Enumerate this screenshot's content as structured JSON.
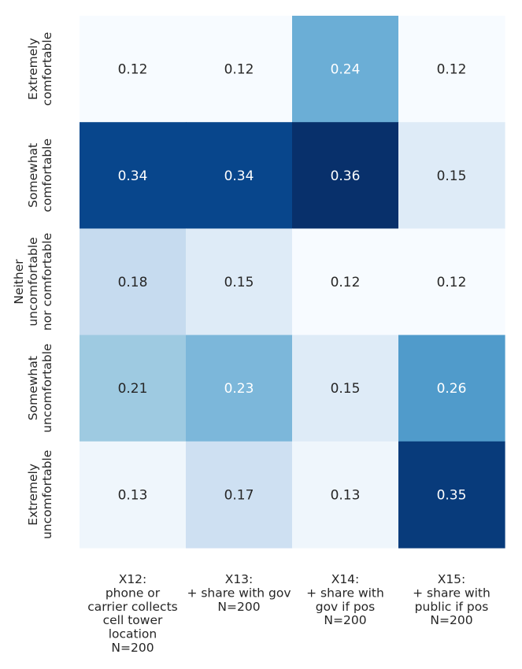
{
  "chart_data": {
    "type": "heatmap",
    "title": "",
    "xlabel": "",
    "ylabel": "",
    "colormap": "Blues",
    "vmin": 0.12,
    "vmax": 0.36,
    "grid": false,
    "legend": "none",
    "rows": [
      [
        "Extremely",
        "comfortable"
      ],
      [
        "Somewhat",
        "comfortable"
      ],
      [
        "Neither",
        "uncomfortable",
        "nor comfortable"
      ],
      [
        "Somewhat",
        "uncomfortable"
      ],
      [
        "Extremely",
        "uncomfortable"
      ]
    ],
    "columns": [
      [
        "X12:",
        "phone or",
        "carrier collects",
        "cell tower",
        "location",
        "N=200"
      ],
      [
        "X13:",
        "+ share with gov",
        "N=200"
      ],
      [
        "X14:",
        "+ share with",
        "gov if pos",
        "N=200"
      ],
      [
        "X15:",
        "+ share with",
        "public if pos",
        "N=200"
      ]
    ],
    "values": [
      [
        0.12,
        0.12,
        0.24,
        0.12
      ],
      [
        0.34,
        0.34,
        0.36,
        0.15
      ],
      [
        0.18,
        0.15,
        0.12,
        0.12
      ],
      [
        0.21,
        0.23,
        0.15,
        0.26
      ],
      [
        0.13,
        0.17,
        0.13,
        0.35
      ]
    ],
    "value_labels": [
      [
        "0.12",
        "0.12",
        "0.24",
        "0.12"
      ],
      [
        "0.34",
        "0.34",
        "0.36",
        "0.15"
      ],
      [
        "0.18",
        "0.15",
        "0.12",
        "0.12"
      ],
      [
        "0.21",
        "0.23",
        "0.15",
        "0.26"
      ],
      [
        "0.13",
        "0.17",
        "0.13",
        "0.35"
      ]
    ]
  }
}
